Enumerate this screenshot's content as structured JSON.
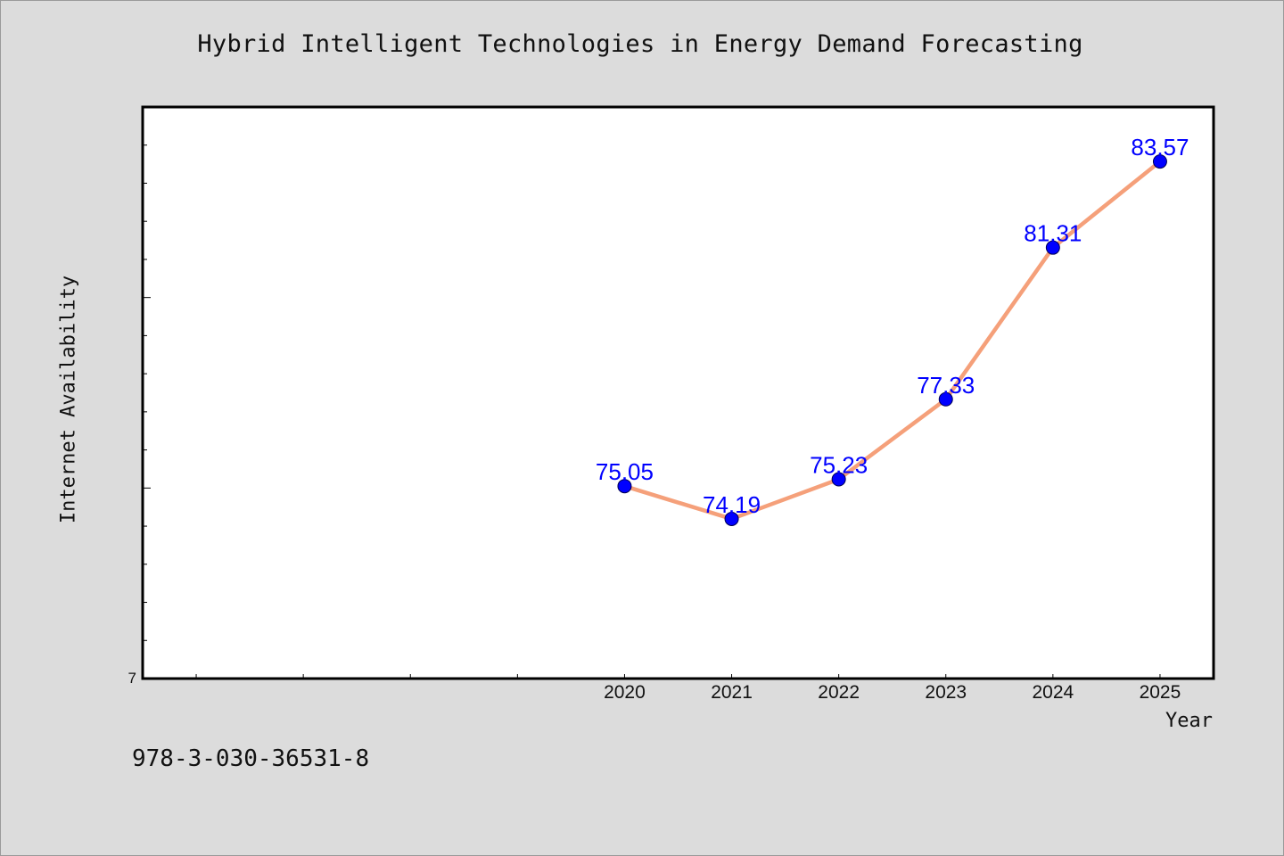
{
  "footer_text": "978-3-030-36531-8",
  "colors": {
    "background": "#dcdcdc",
    "plot_area": "#ffffff",
    "line": "#f5a07a",
    "marker": "#0000ff",
    "data_label": "#0000ff"
  },
  "chart_data": {
    "type": "line",
    "title": "Hybrid Intelligent Technologies in Energy Demand Forecasting",
    "xlabel": "Year",
    "ylabel": "Internet Availability",
    "x": [
      "2020",
      "2021",
      "2022",
      "2023",
      "2024",
      "2025"
    ],
    "x_extent": [
      2015.5,
      2025.5
    ],
    "series": [
      {
        "values": [
          75.05,
          74.19,
          75.23,
          77.33,
          81.31,
          83.57
        ]
      }
    ],
    "ylim": [
      70,
      85
    ],
    "y_tick_label": "7",
    "grid": false,
    "legend": "none",
    "marker": "circle",
    "data_labels": true
  }
}
